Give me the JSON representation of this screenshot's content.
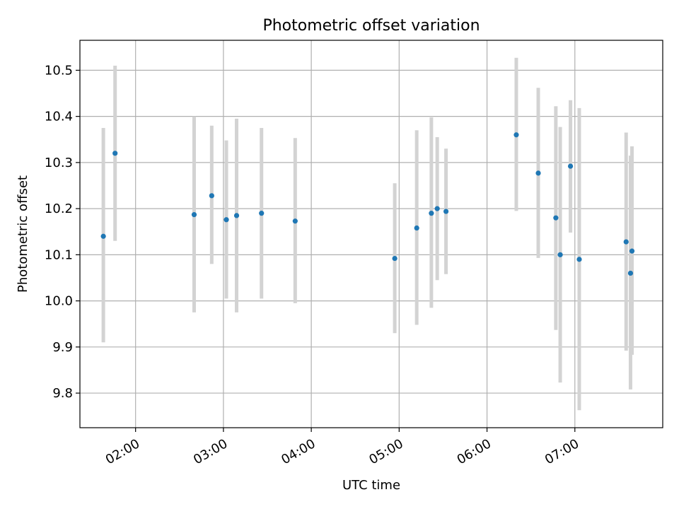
{
  "chart_data": {
    "type": "scatter",
    "title": "Photometric offset variation",
    "xlabel": "UTC time",
    "ylabel": "Photometric offset",
    "x_ticks": [
      "02:00",
      "03:00",
      "04:00",
      "05:00",
      "06:00",
      "07:00"
    ],
    "y_ticks": [
      "9.8",
      "9.9",
      "10.0",
      "10.1",
      "10.2",
      "10.3",
      "10.4",
      "10.5"
    ],
    "xlim": [
      "01:22",
      "08:00"
    ],
    "ylim": [
      9.725,
      10.565
    ],
    "grid": true,
    "marker_color": "#1f77b4",
    "errorbar_color": "#d3d3d3",
    "points": [
      {
        "x": "01:38",
        "y": 10.14,
        "lo": 9.91,
        "hi": 10.375
      },
      {
        "x": "01:46",
        "y": 10.32,
        "lo": 10.13,
        "hi": 10.51
      },
      {
        "x": "02:40",
        "y": 10.187,
        "lo": 9.975,
        "hi": 10.4
      },
      {
        "x": "02:52",
        "y": 10.228,
        "lo": 10.08,
        "hi": 10.38
      },
      {
        "x": "03:02",
        "y": 10.176,
        "lo": 10.005,
        "hi": 10.348
      },
      {
        "x": "03:09",
        "y": 10.185,
        "lo": 9.975,
        "hi": 10.395
      },
      {
        "x": "03:26",
        "y": 10.19,
        "lo": 10.005,
        "hi": 10.375
      },
      {
        "x": "03:49",
        "y": 10.173,
        "lo": 9.995,
        "hi": 10.353
      },
      {
        "x": "04:57",
        "y": 10.092,
        "lo": 9.93,
        "hi": 10.255
      },
      {
        "x": "05:12",
        "y": 10.158,
        "lo": 9.948,
        "hi": 10.37
      },
      {
        "x": "05:22",
        "y": 10.19,
        "lo": 9.985,
        "hi": 10.398
      },
      {
        "x": "05:26",
        "y": 10.2,
        "lo": 10.045,
        "hi": 10.355
      },
      {
        "x": "05:32",
        "y": 10.194,
        "lo": 10.058,
        "hi": 10.33
      },
      {
        "x": "06:20",
        "y": 10.36,
        "lo": 10.195,
        "hi": 10.527
      },
      {
        "x": "06:35",
        "y": 10.277,
        "lo": 10.093,
        "hi": 10.462
      },
      {
        "x": "06:47",
        "y": 10.18,
        "lo": 9.937,
        "hi": 10.422
      },
      {
        "x": "06:50",
        "y": 10.1,
        "lo": 9.823,
        "hi": 10.377
      },
      {
        "x": "06:57",
        "y": 10.292,
        "lo": 10.148,
        "hi": 10.435
      },
      {
        "x": "07:03",
        "y": 10.09,
        "lo": 9.763,
        "hi": 10.418
      },
      {
        "x": "07:35",
        "y": 10.128,
        "lo": 9.892,
        "hi": 10.365
      },
      {
        "x": "07:38",
        "y": 10.06,
        "lo": 9.808,
        "hi": 10.315
      },
      {
        "x": "07:39",
        "y": 10.108,
        "lo": 9.883,
        "hi": 10.335
      }
    ]
  }
}
